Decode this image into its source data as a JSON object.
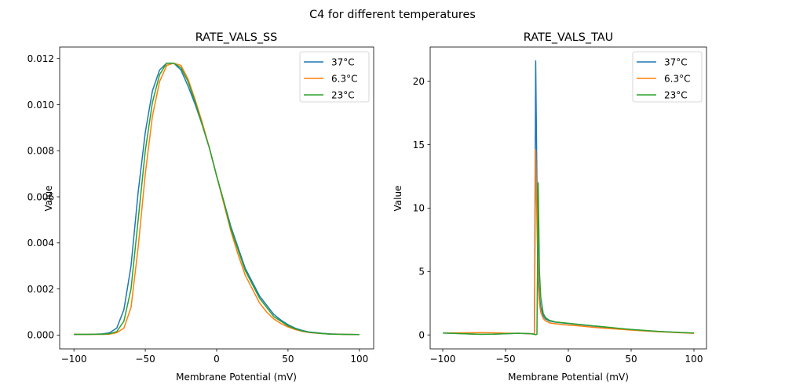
{
  "figure": {
    "suptitle": "C4 for different temperatures"
  },
  "chart_data": [
    {
      "type": "line",
      "title": "RATE_VALS_SS",
      "xlabel": "Membrane Potential (mV)",
      "ylabel": "Value",
      "xlim": [
        -110,
        110
      ],
      "ylim": [
        -0.0006,
        0.0125
      ],
      "xticks": [
        -100,
        -50,
        0,
        50,
        100
      ],
      "xtick_labels": [
        "−100",
        "−50",
        "0",
        "50",
        "100"
      ],
      "yticks": [
        0.0,
        0.002,
        0.004,
        0.006,
        0.008,
        0.01,
        0.012
      ],
      "ytick_labels": [
        "0.000",
        "0.002",
        "0.004",
        "0.006",
        "0.008",
        "0.010",
        "0.012"
      ],
      "legend": "top-right",
      "grid": false,
      "x": [
        -100,
        -90,
        -80,
        -75,
        -70,
        -65,
        -60,
        -55,
        -50,
        -45,
        -40,
        -35,
        -30,
        -25,
        -20,
        -15,
        -10,
        -5,
        0,
        5,
        10,
        15,
        20,
        25,
        30,
        35,
        40,
        45,
        50,
        55,
        60,
        65,
        70,
        75,
        80,
        90,
        100
      ],
      "series": [
        {
          "name": "37°C",
          "color": "#1f77b4",
          "values": [
            3e-05,
            3e-05,
            5e-05,
            0.0001,
            0.0003,
            0.0011,
            0.003,
            0.0062,
            0.0088,
            0.0106,
            0.0115,
            0.0118,
            0.0118,
            0.0115,
            0.0108,
            0.01,
            0.0091,
            0.0081,
            0.0069,
            0.0058,
            0.0047,
            0.0038,
            0.0029,
            0.0023,
            0.0017,
            0.0013,
            0.0009,
            0.00065,
            0.00045,
            0.0003,
            0.0002,
            0.00013,
            0.0001,
            7e-05,
            5e-05,
            3e-05,
            2e-05
          ]
        },
        {
          "name": "6.3°C",
          "color": "#ff7f0e",
          "values": [
            3e-05,
            3e-05,
            3e-05,
            4e-05,
            0.0001,
            0.0003,
            0.0012,
            0.0038,
            0.007,
            0.0095,
            0.011,
            0.0117,
            0.0118,
            0.0117,
            0.0111,
            0.0102,
            0.0092,
            0.0081,
            0.0069,
            0.0057,
            0.0045,
            0.0035,
            0.0026,
            0.002,
            0.0014,
            0.001,
            0.0007,
            0.0005,
            0.00035,
            0.00024,
            0.00016,
            0.00011,
            8e-05,
            6e-05,
            4e-05,
            3e-05,
            2e-05
          ]
        },
        {
          "name": "23°C",
          "color": "#2ca02c",
          "values": [
            3e-05,
            3e-05,
            4e-05,
            6e-05,
            0.00015,
            0.0006,
            0.002,
            0.005,
            0.008,
            0.0101,
            0.0113,
            0.0118,
            0.0118,
            0.0116,
            0.011,
            0.0101,
            0.0091,
            0.0081,
            0.0069,
            0.0058,
            0.0046,
            0.0037,
            0.0028,
            0.0022,
            0.0016,
            0.0012,
            0.0008,
            0.0006,
            0.0004,
            0.00027,
            0.00018,
            0.00012,
            9e-05,
            6e-05,
            4e-05,
            3e-05,
            2e-05
          ]
        }
      ]
    },
    {
      "type": "line",
      "title": "RATE_VALS_TAU",
      "xlabel": "Membrane Potential (mV)",
      "ylabel": "Value",
      "xlim": [
        -110,
        110
      ],
      "ylim": [
        -1.1,
        22.7
      ],
      "xticks": [
        -100,
        -50,
        0,
        50,
        100
      ],
      "xtick_labels": [
        "−100",
        "−50",
        "0",
        "50",
        "100"
      ],
      "yticks": [
        0,
        5,
        10,
        15,
        20
      ],
      "ytick_labels": [
        "0",
        "5",
        "10",
        "15",
        "20"
      ],
      "legend": "top-right",
      "grid": false,
      "series": [
        {
          "name": "37°C",
          "color": "#1f77b4",
          "x": [
            -100,
            -90,
            -80,
            -70,
            -60,
            -50,
            -40,
            -30,
            -27,
            -26,
            -25,
            -24,
            -23,
            -22,
            -20,
            -18,
            -15,
            -10,
            -5,
            0,
            10,
            20,
            30,
            40,
            50,
            60,
            70,
            80,
            90,
            100
          ],
          "values": [
            0.15,
            0.12,
            0.08,
            0.05,
            0.06,
            0.1,
            0.13,
            0.1,
            0.05,
            21.6,
            12.0,
            5.0,
            3.0,
            2.2,
            1.5,
            1.25,
            1.1,
            1.0,
            0.95,
            0.9,
            0.8,
            0.7,
            0.6,
            0.5,
            0.42,
            0.35,
            0.28,
            0.23,
            0.18,
            0.14
          ]
        },
        {
          "name": "6.3°C",
          "color": "#ff7f0e",
          "x": [
            -100,
            -90,
            -80,
            -70,
            -60,
            -50,
            -40,
            -30,
            -27,
            -26,
            -25,
            -24,
            -23,
            -22,
            -20,
            -18,
            -15,
            -10,
            -5,
            0,
            10,
            20,
            30,
            40,
            50,
            60,
            70,
            80,
            90,
            100
          ],
          "values": [
            0.15,
            0.16,
            0.17,
            0.18,
            0.17,
            0.14,
            0.13,
            0.1,
            0.08,
            14.6,
            9.0,
            4.0,
            2.5,
            1.8,
            1.3,
            1.1,
            0.95,
            0.88,
            0.82,
            0.78,
            0.7,
            0.6,
            0.52,
            0.45,
            0.38,
            0.32,
            0.26,
            0.21,
            0.17,
            0.13
          ]
        },
        {
          "name": "23°C",
          "color": "#2ca02c",
          "x": [
            -100,
            -90,
            -80,
            -70,
            -60,
            -50,
            -40,
            -30,
            -27,
            -26,
            -25,
            -24,
            -23,
            -22,
            -20,
            -18,
            -15,
            -10,
            -5,
            0,
            10,
            20,
            30,
            40,
            50,
            60,
            70,
            80,
            90,
            100
          ],
          "values": [
            0.15,
            0.12,
            0.08,
            0.05,
            0.06,
            0.1,
            0.13,
            0.1,
            0.05,
            0.02,
            0.05,
            12.0,
            5.0,
            3.0,
            1.7,
            1.35,
            1.15,
            1.02,
            0.97,
            0.92,
            0.82,
            0.72,
            0.62,
            0.52,
            0.43,
            0.36,
            0.29,
            0.24,
            0.19,
            0.15
          ]
        }
      ]
    }
  ]
}
